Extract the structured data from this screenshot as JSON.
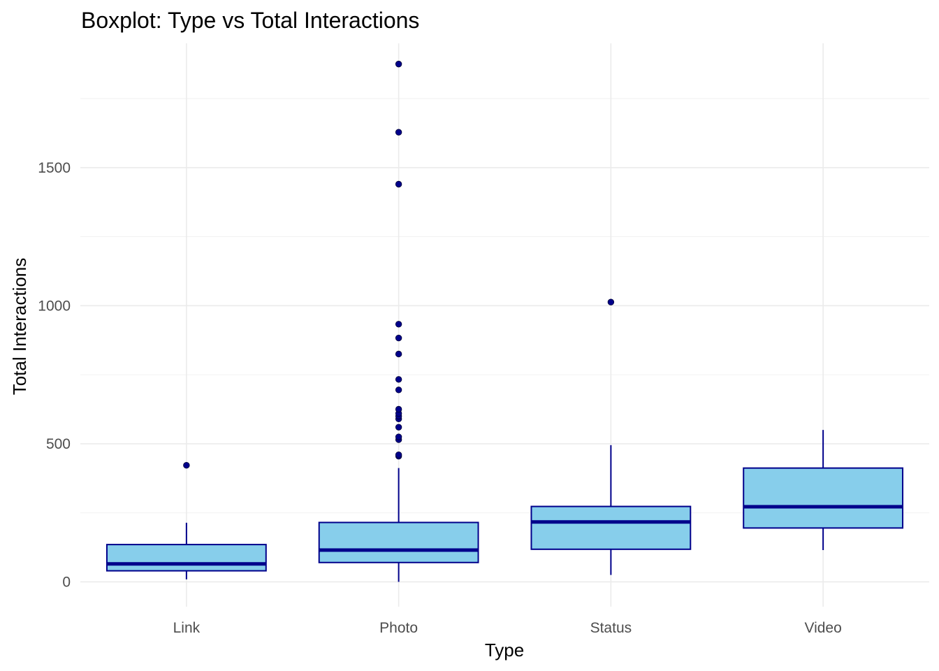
{
  "chart_data": {
    "type": "boxplot",
    "title": "Boxplot: Type vs Total Interactions",
    "xlabel": "Type",
    "ylabel": "Total Interactions",
    "categories": [
      "Link",
      "Photo",
      "Status",
      "Video"
    ],
    "ylim": [
      -90,
      1950
    ],
    "y_ticks": [
      0,
      500,
      1000,
      1500
    ],
    "y_minor_ticks": [
      250,
      750,
      1250,
      1750
    ],
    "grid": true,
    "legend": "none",
    "colors": {
      "fill": "#87ceeb",
      "outline": "#00008b",
      "grid": "#ebebeb"
    },
    "boxes": [
      {
        "category": "Link",
        "whisker_low": 9,
        "q1": 40,
        "median": 65,
        "q3": 135,
        "whisker_high": 214,
        "outliers": [
          422
        ]
      },
      {
        "category": "Photo",
        "whisker_low": 0,
        "q1": 70,
        "median": 115,
        "q3": 215,
        "whisker_high": 412,
        "outliers": [
          455,
          460,
          515,
          525,
          560,
          590,
          600,
          610,
          625,
          695,
          733,
          825,
          883,
          933,
          1440,
          1628,
          1875
        ]
      },
      {
        "category": "Status",
        "whisker_low": 25,
        "q1": 118,
        "median": 217,
        "q3": 273,
        "whisker_high": 495,
        "outliers": [
          1013
        ]
      },
      {
        "category": "Video",
        "whisker_low": 115,
        "q1": 195,
        "median": 272,
        "q3": 412,
        "whisker_high": 550,
        "outliers": []
      }
    ]
  }
}
